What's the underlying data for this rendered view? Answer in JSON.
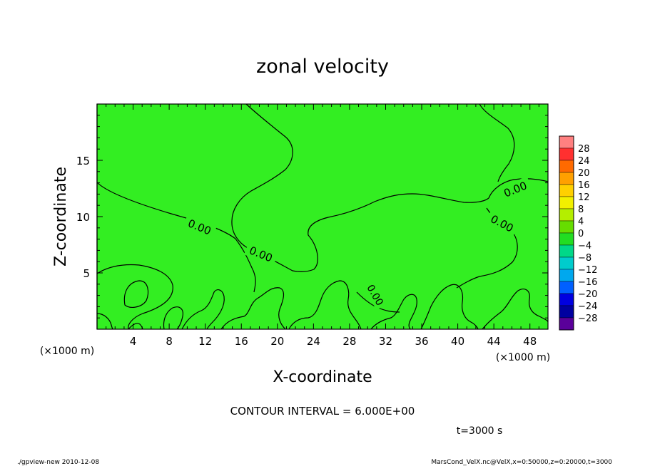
{
  "chart_data": {
    "type": "contour",
    "title": "zonal velocity",
    "xlabel": "X-coordinate",
    "ylabel": "Z-coordinate",
    "x_units": "(×1000 m)",
    "y_units": "(×1000 m)",
    "xlim": [
      0,
      50
    ],
    "ylim": [
      0,
      20
    ],
    "x_ticks": [
      4,
      8,
      12,
      16,
      20,
      24,
      28,
      32,
      36,
      40,
      44,
      48
    ],
    "y_ticks": [
      5,
      10,
      15
    ],
    "contour_interval_text": "CONTOUR INTERVAL = 6.000E+00",
    "contour_labels": [
      "0.00",
      "0.00",
      "0.00",
      "0.00",
      "0.00",
      "0.00"
    ],
    "colorbar": {
      "levels": [
        28,
        24,
        20,
        16,
        12,
        8,
        4,
        0,
        -4,
        -8,
        -12,
        -16,
        -20,
        -24,
        -28
      ],
      "colors": [
        "#ff8080",
        "#ff3030",
        "#ff6a00",
        "#ffa000",
        "#ffd000",
        "#f2f000",
        "#b4ee00",
        "#66dd00",
        "#22dd22",
        "#00d888",
        "#00cccc",
        "#00a8ee",
        "#0060ff",
        "#0000e0",
        "#0000a0",
        "#5a009a"
      ]
    },
    "field_fill_color": "#33ee22",
    "time_label": "t=3000 s",
    "footer_left": "./gpview-new   2010-12-08",
    "footer_right": "MarsCond_VelX.nc@VelX,x=0:50000,z=0:20000,t=3000"
  }
}
